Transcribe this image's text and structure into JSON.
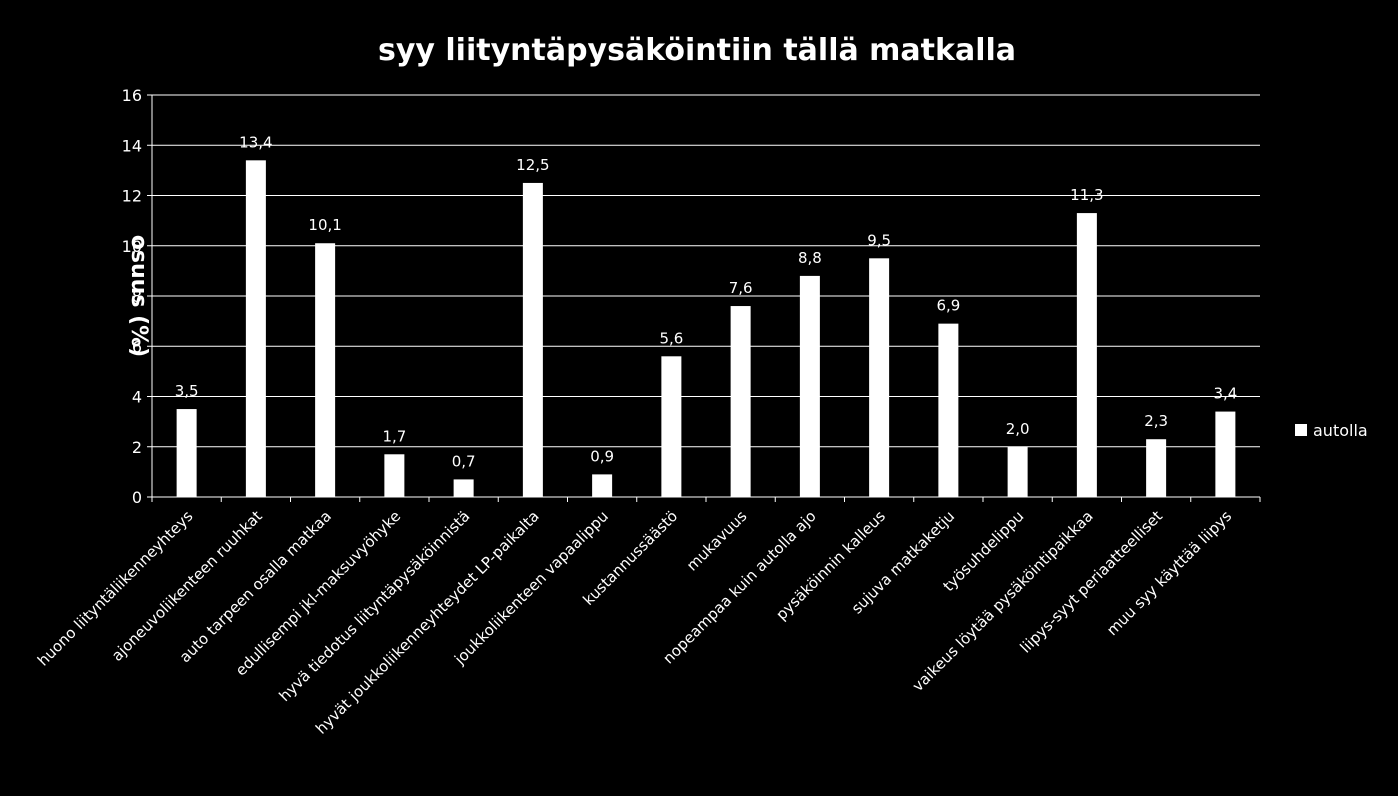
{
  "chart_data": {
    "type": "bar",
    "title": "syy liityntäpysäköintiin tällä matkalla",
    "ylabel": "osuus (%)",
    "xlabel": "",
    "ylim": [
      0,
      16
    ],
    "yticks": [
      "0",
      "2",
      "4",
      "6",
      "8",
      "10",
      "12",
      "14",
      "16"
    ],
    "grid": true,
    "legend_position": "right",
    "bar_color": "#ffffff",
    "categories": [
      "huono liityntäliikenneyhteys",
      "ajoneuvoliikenteen ruuhkat",
      "auto tarpeen osalla matkaa",
      "edullisempi jkl-maksuvyöhyke",
      "hyvä tiedotus liityntäpysäköinnistä",
      "hyvät joukkoliikenneyhteydet LP-paikalta",
      "joukkoliikenteen vapaalippu",
      "kustannussäästö",
      "mukavuus",
      "nopeampaa kuin autolla ajo",
      "pysäköinnin kalleus",
      "sujuva matkaketju",
      "työsuhdelippu",
      "vaikeus löytää pysäköintipaikkaa",
      "liipys-syyt periaatteelliset",
      "muu syy käyttää liipys"
    ],
    "series": [
      {
        "name": "autolla",
        "values": [
          3.5,
          13.4,
          10.1,
          1.7,
          0.7,
          12.5,
          0.9,
          5.6,
          7.6,
          8.8,
          9.5,
          6.9,
          2.0,
          11.3,
          2.3,
          3.4
        ],
        "labels": [
          "3,5",
          "13,4",
          "10,1",
          "1,7",
          "0,7",
          "12,5",
          "0,9",
          "5,6",
          "7,6",
          "8,8",
          "9,5",
          "6,9",
          "2,0",
          "11,3",
          "2,3",
          "3,4"
        ]
      }
    ]
  }
}
